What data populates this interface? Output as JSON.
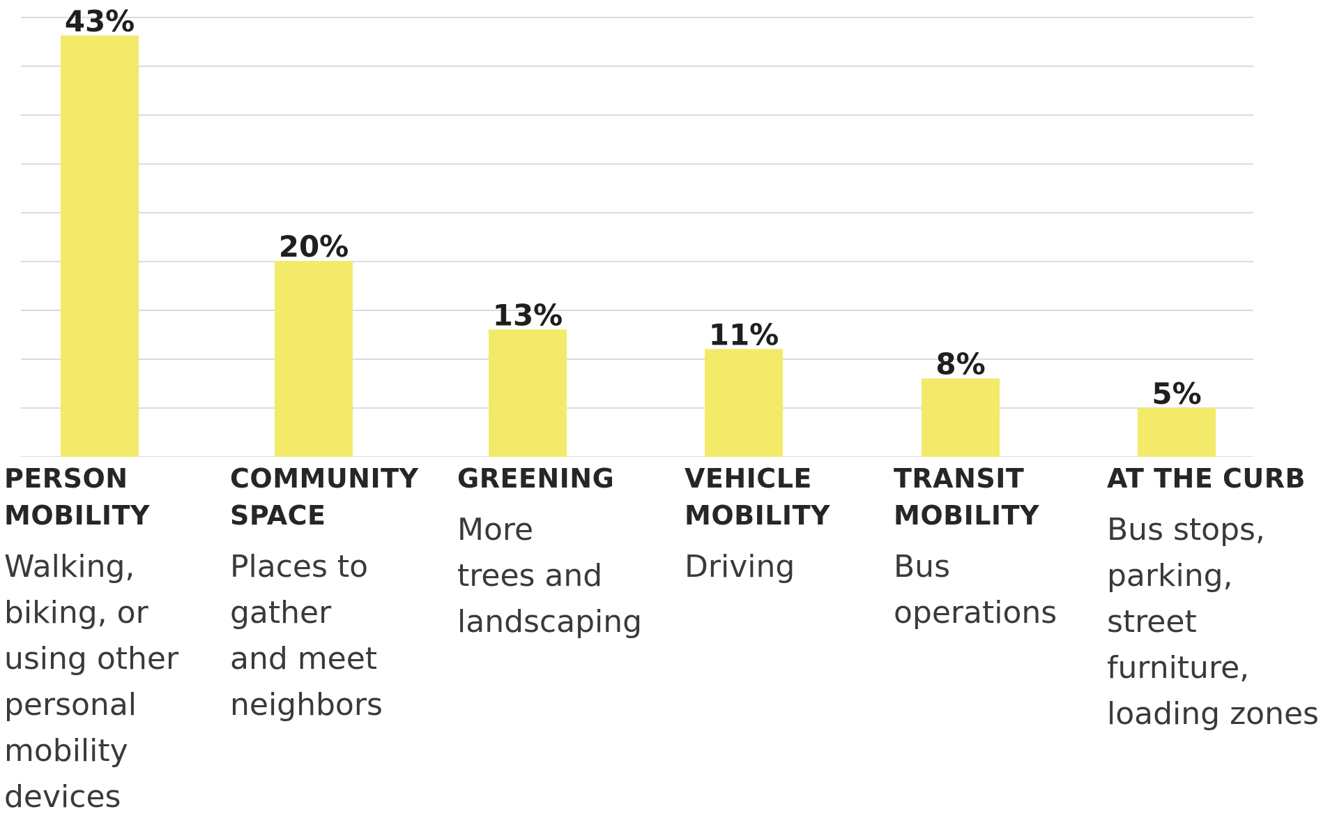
{
  "chart_data": {
    "type": "bar",
    "categories": [
      "PERSON\nMOBILITY",
      "COMMUNITY\nSPACE",
      "GREENING",
      "VEHICLE\nMOBILITY",
      "TRANSIT\nMOBILITY",
      "AT THE CURB"
    ],
    "descriptions": [
      "Walking,\nbiking, or\nusing other\npersonal\nmobility\ndevices",
      "Places to\ngather\nand meet\nneighbors",
      "More\ntrees and\nlandscaping",
      "Driving",
      "Bus\noperations",
      "Bus stops,\nparking,\nstreet\nfurniture,\nloading zones"
    ],
    "values": [
      43,
      20,
      13,
      11,
      8,
      5
    ],
    "value_labels": [
      "43%",
      "20%",
      "13%",
      "11%",
      "8%",
      "5%"
    ],
    "ylim": [
      0,
      45
    ],
    "grid": true,
    "bar_color": "#F3EA6A",
    "grid_color": "#dcdcdc",
    "title": "",
    "xlabel": "",
    "ylabel": ""
  }
}
